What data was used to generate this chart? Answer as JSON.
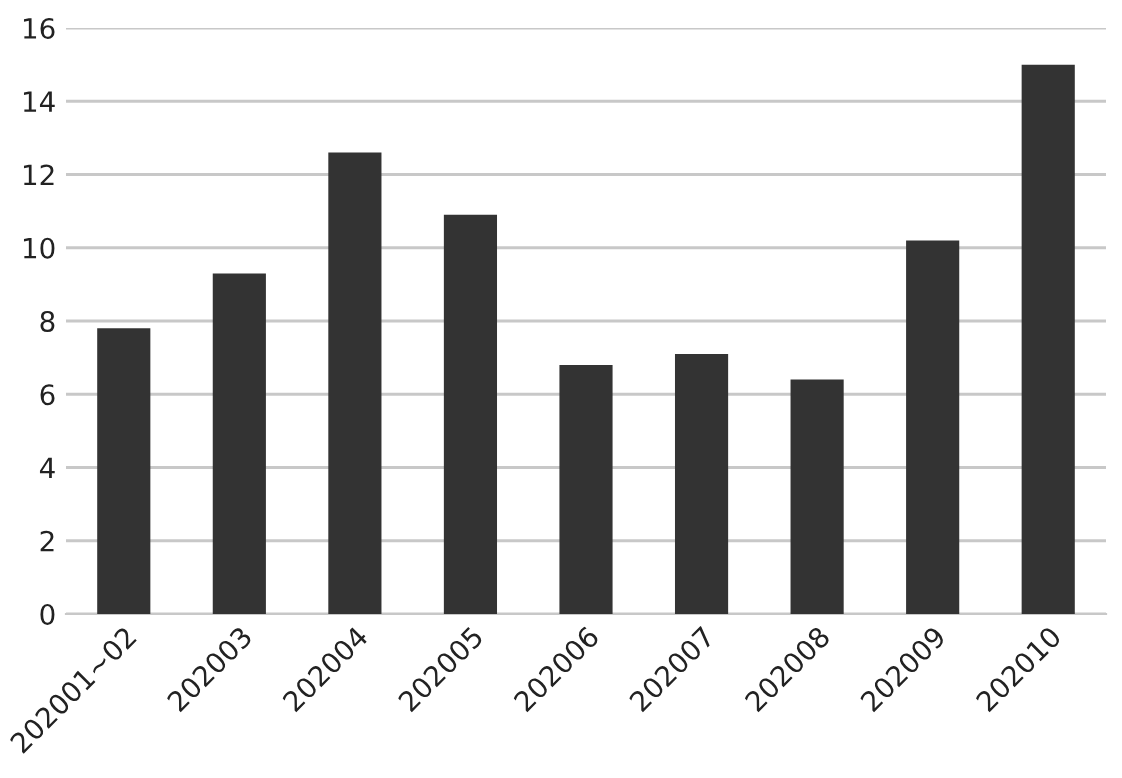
{
  "chart_data": {
    "type": "bar",
    "categories": [
      "202001~02",
      "202003",
      "202004",
      "202005",
      "202006",
      "202007",
      "202008",
      "202009",
      "202010"
    ],
    "values": [
      7.8,
      9.3,
      12.6,
      10.9,
      6.8,
      7.1,
      6.4,
      10.2,
      15.0
    ],
    "color": "#333333",
    "ylim": [
      0,
      16
    ],
    "yticks": [
      0,
      2,
      4,
      6,
      8,
      10,
      12,
      14,
      16
    ],
    "grid": "y"
  }
}
